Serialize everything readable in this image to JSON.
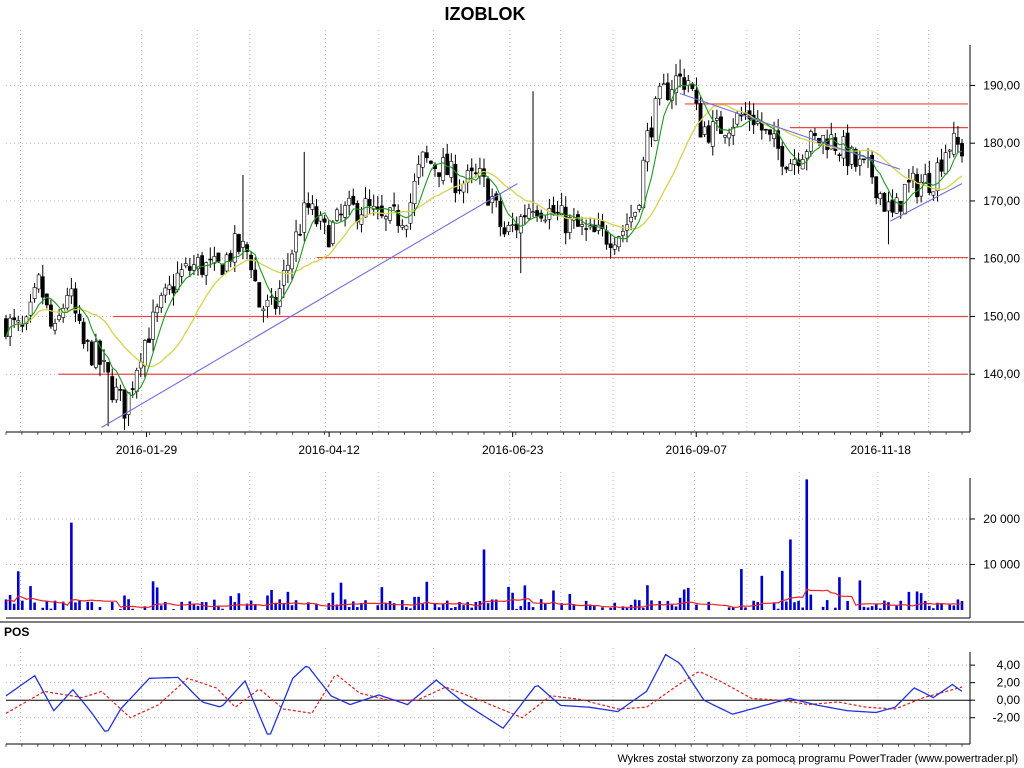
{
  "title": "IZOBLOK",
  "footer": "Wykres został stworzony za pomocą programu PowerTrader (www.powertrader.pl)",
  "colors": {
    "up": "#00aa00",
    "down": "#000000",
    "ma_fast": "#1e9a1e",
    "ma_slow": "#d6d24a",
    "trendline": "#6f6fe0",
    "sr_line": "#ee4444",
    "volume": "#0000cc",
    "volume_avg": "#ee2222",
    "pos_line": "#2233dd",
    "pos_signal": "#dd2222",
    "grid": "#999999"
  },
  "chart_data": [
    {
      "type": "candlestick",
      "title": "IZOBLOK",
      "x_dates": [
        "2016-01-29",
        "2016-04-12",
        "2016-06-23",
        "2016-09-07",
        "2016-11-18"
      ],
      "ylim": [
        130,
        197
      ],
      "y_ticks": [
        "140,00",
        "150,00",
        "160,00",
        "170,00",
        "180,00",
        "190,00"
      ],
      "grid": true,
      "horizontal_levels": [
        140,
        150,
        160.2,
        182.7,
        186.8
      ],
      "trendlines": [
        {
          "from": {
            "t": 0.1,
            "v": 130.8
          },
          "to": {
            "t": 0.535,
            "v": 173.0
          }
        },
        {
          "from": {
            "t": 0.705,
            "v": 188.6
          },
          "to": {
            "t": 0.935,
            "v": 175.5
          }
        },
        {
          "from": {
            "t": 0.925,
            "v": 166.5
          },
          "to": {
            "t": 1.0,
            "v": 173.0
          }
        }
      ],
      "price_path": [
        [
          0.0,
          149
        ],
        [
          0.02,
          147
        ],
        [
          0.035,
          156
        ],
        [
          0.05,
          146
        ],
        [
          0.065,
          155
        ],
        [
          0.08,
          145
        ],
        [
          0.095,
          143
        ],
        [
          0.11,
          138
        ],
        [
          0.125,
          134
        ],
        [
          0.14,
          144
        ],
        [
          0.16,
          151
        ],
        [
          0.18,
          157
        ],
        [
          0.2,
          159
        ],
        [
          0.22,
          158
        ],
        [
          0.24,
          162
        ],
        [
          0.255,
          161
        ],
        [
          0.265,
          152
        ],
        [
          0.28,
          151
        ],
        [
          0.3,
          162
        ],
        [
          0.315,
          169
        ],
        [
          0.335,
          164
        ],
        [
          0.355,
          168
        ],
        [
          0.375,
          169
        ],
        [
          0.395,
          166
        ],
        [
          0.42,
          168
        ],
        [
          0.435,
          177
        ],
        [
          0.455,
          176
        ],
        [
          0.475,
          173
        ],
        [
          0.495,
          174
        ],
        [
          0.51,
          170
        ],
        [
          0.52,
          164
        ],
        [
          0.535,
          166
        ],
        [
          0.55,
          170
        ],
        [
          0.57,
          168
        ],
        [
          0.59,
          166
        ],
        [
          0.61,
          164
        ],
        [
          0.63,
          164
        ],
        [
          0.645,
          165
        ],
        [
          0.66,
          169
        ],
        [
          0.672,
          182
        ],
        [
          0.685,
          188
        ],
        [
          0.7,
          191
        ],
        [
          0.715,
          191
        ],
        [
          0.725,
          183
        ],
        [
          0.74,
          182
        ],
        [
          0.76,
          184
        ],
        [
          0.78,
          185
        ],
        [
          0.8,
          180
        ],
        [
          0.82,
          177
        ],
        [
          0.84,
          180
        ],
        [
          0.86,
          181
        ],
        [
          0.875,
          179
        ],
        [
          0.89,
          176
        ],
        [
          0.905,
          175
        ],
        [
          0.918,
          170
        ],
        [
          0.928,
          167
        ],
        [
          0.94,
          172
        ],
        [
          0.955,
          173
        ],
        [
          0.97,
          174
        ],
        [
          0.985,
          180
        ],
        [
          1.0,
          179
        ]
      ],
      "spikes": [
        {
          "t": 0.553,
          "high": 189
        },
        {
          "t": 0.705,
          "high": 194.5
        },
        {
          "t": 0.248,
          "high": 174.5
        },
        {
          "t": 0.311,
          "high": 178.5
        },
        {
          "t": 0.105,
          "low": 131
        },
        {
          "t": 0.128,
          "low": 132
        },
        {
          "t": 0.925,
          "low": 162.5
        },
        {
          "t": 0.538,
          "low": 157.5
        }
      ]
    },
    {
      "type": "bar",
      "name": "volume",
      "ylim": [
        0,
        29000
      ],
      "y_ticks": [
        "10 000",
        "20 000"
      ],
      "spikes": [
        {
          "t": 0.013,
          "v": 8500
        },
        {
          "t": 0.068,
          "v": 19200
        },
        {
          "t": 0.153,
          "v": 6300
        },
        {
          "t": 0.277,
          "v": 4400
        },
        {
          "t": 0.5,
          "v": 13300
        },
        {
          "t": 0.44,
          "v": 6200
        },
        {
          "t": 0.35,
          "v": 6000
        },
        {
          "t": 0.71,
          "v": 4500
        },
        {
          "t": 0.77,
          "v": 9000
        },
        {
          "t": 0.79,
          "v": 7500
        },
        {
          "t": 0.81,
          "v": 8600
        },
        {
          "t": 0.82,
          "v": 15500
        },
        {
          "t": 0.838,
          "v": 28700
        },
        {
          "t": 0.87,
          "v": 7200
        },
        {
          "t": 0.893,
          "v": 6500
        }
      ]
    },
    {
      "type": "line",
      "name": "POS",
      "title": "POS",
      "ylim": [
        -5.0,
        5.5
      ],
      "y_ticks": [
        "4,00",
        "2,00",
        "0,00",
        "-2,00"
      ],
      "pos_path": [
        [
          0.0,
          0.5
        ],
        [
          0.03,
          2.8
        ],
        [
          0.05,
          -1.2
        ],
        [
          0.07,
          1.2
        ],
        [
          0.09,
          -1.5
        ],
        [
          0.105,
          -3.8
        ],
        [
          0.12,
          -1.0
        ],
        [
          0.15,
          2.5
        ],
        [
          0.18,
          2.6
        ],
        [
          0.205,
          -0.2
        ],
        [
          0.225,
          -0.8
        ],
        [
          0.25,
          2.2
        ],
        [
          0.275,
          -4.3
        ],
        [
          0.3,
          2.5
        ],
        [
          0.315,
          4.0
        ],
        [
          0.34,
          0.5
        ],
        [
          0.36,
          -0.5
        ],
        [
          0.39,
          0.6
        ],
        [
          0.42,
          -0.5
        ],
        [
          0.45,
          2.3
        ],
        [
          0.48,
          -0.4
        ],
        [
          0.52,
          -3.2
        ],
        [
          0.555,
          1.8
        ],
        [
          0.58,
          -0.6
        ],
        [
          0.61,
          -0.8
        ],
        [
          0.64,
          -1.3
        ],
        [
          0.67,
          1.0
        ],
        [
          0.69,
          5.2
        ],
        [
          0.705,
          4.2
        ],
        [
          0.73,
          0.0
        ],
        [
          0.76,
          -1.6
        ],
        [
          0.79,
          -0.7
        ],
        [
          0.82,
          0.2
        ],
        [
          0.85,
          -0.6
        ],
        [
          0.88,
          -1.2
        ],
        [
          0.91,
          -1.4
        ],
        [
          0.93,
          -0.8
        ],
        [
          0.95,
          1.4
        ],
        [
          0.97,
          0.3
        ],
        [
          0.99,
          1.8
        ],
        [
          1.0,
          1.0
        ]
      ],
      "signal_path": [
        [
          0.0,
          -1.5
        ],
        [
          0.04,
          1.0
        ],
        [
          0.08,
          0.3
        ],
        [
          0.1,
          1.0
        ],
        [
          0.13,
          -2.0
        ],
        [
          0.16,
          -0.5
        ],
        [
          0.19,
          2.5
        ],
        [
          0.22,
          1.4
        ],
        [
          0.24,
          -0.8
        ],
        [
          0.265,
          1.3
        ],
        [
          0.29,
          -1.0
        ],
        [
          0.32,
          -1.5
        ],
        [
          0.345,
          3.0
        ],
        [
          0.37,
          0.8
        ],
        [
          0.4,
          0.0
        ],
        [
          0.43,
          0.0
        ],
        [
          0.46,
          1.5
        ],
        [
          0.5,
          -0.2
        ],
        [
          0.54,
          -2.0
        ],
        [
          0.57,
          0.5
        ],
        [
          0.6,
          0.1
        ],
        [
          0.64,
          -1.0
        ],
        [
          0.67,
          -0.8
        ],
        [
          0.7,
          1.5
        ],
        [
          0.725,
          3.3
        ],
        [
          0.75,
          2.0
        ],
        [
          0.78,
          0.2
        ],
        [
          0.81,
          0.0
        ],
        [
          0.84,
          -0.5
        ],
        [
          0.87,
          -0.2
        ],
        [
          0.9,
          -0.8
        ],
        [
          0.93,
          -1.0
        ],
        [
          0.96,
          0.3
        ],
        [
          0.99,
          1.2
        ],
        [
          1.0,
          1.5
        ]
      ]
    }
  ]
}
